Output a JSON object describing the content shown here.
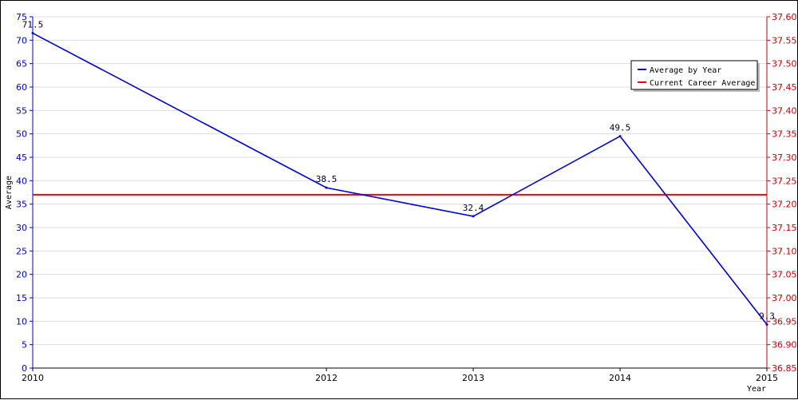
{
  "chart_data": {
    "type": "line",
    "x": [
      2010,
      2012,
      2013,
      2014,
      2015
    ],
    "xticks": [
      "2010",
      "2012",
      "2013",
      "2014",
      "2015"
    ],
    "xlabel": "Year",
    "ylabel": "Average",
    "ylim": [
      0,
      75
    ],
    "yticks": [
      "0",
      "5",
      "10",
      "15",
      "20",
      "25",
      "30",
      "35",
      "40",
      "45",
      "50",
      "55",
      "60",
      "65",
      "70",
      "75"
    ],
    "y2lim": [
      36.85,
      37.6
    ],
    "y2ticks": [
      "36.85",
      "36.90",
      "36.95",
      "37.00",
      "37.05",
      "37.10",
      "37.15",
      "37.20",
      "37.25",
      "37.30",
      "37.35",
      "37.40",
      "37.45",
      "37.50",
      "37.55",
      "37.60"
    ],
    "series": [
      {
        "name": "Average by Year",
        "color": "#0000dd",
        "values": [
          71.5,
          38.5,
          32.4,
          49.5,
          9.3
        ],
        "labels": [
          "71.5",
          "38.5",
          "32.4",
          "49.5",
          "9.3"
        ]
      },
      {
        "name": "Current Career Average",
        "color": "#ff0000",
        "axis": "right",
        "value": 37.22
      }
    ],
    "grid": true,
    "legend_position": "top-right"
  }
}
